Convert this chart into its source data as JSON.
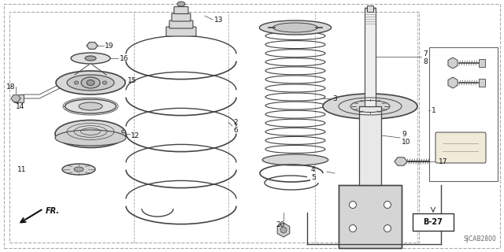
{
  "bg_color": "#ffffff",
  "line_color": "#444444",
  "diagram_code": "SJCAB2800",
  "page_ref": "B-27",
  "direction_label": "FR."
}
